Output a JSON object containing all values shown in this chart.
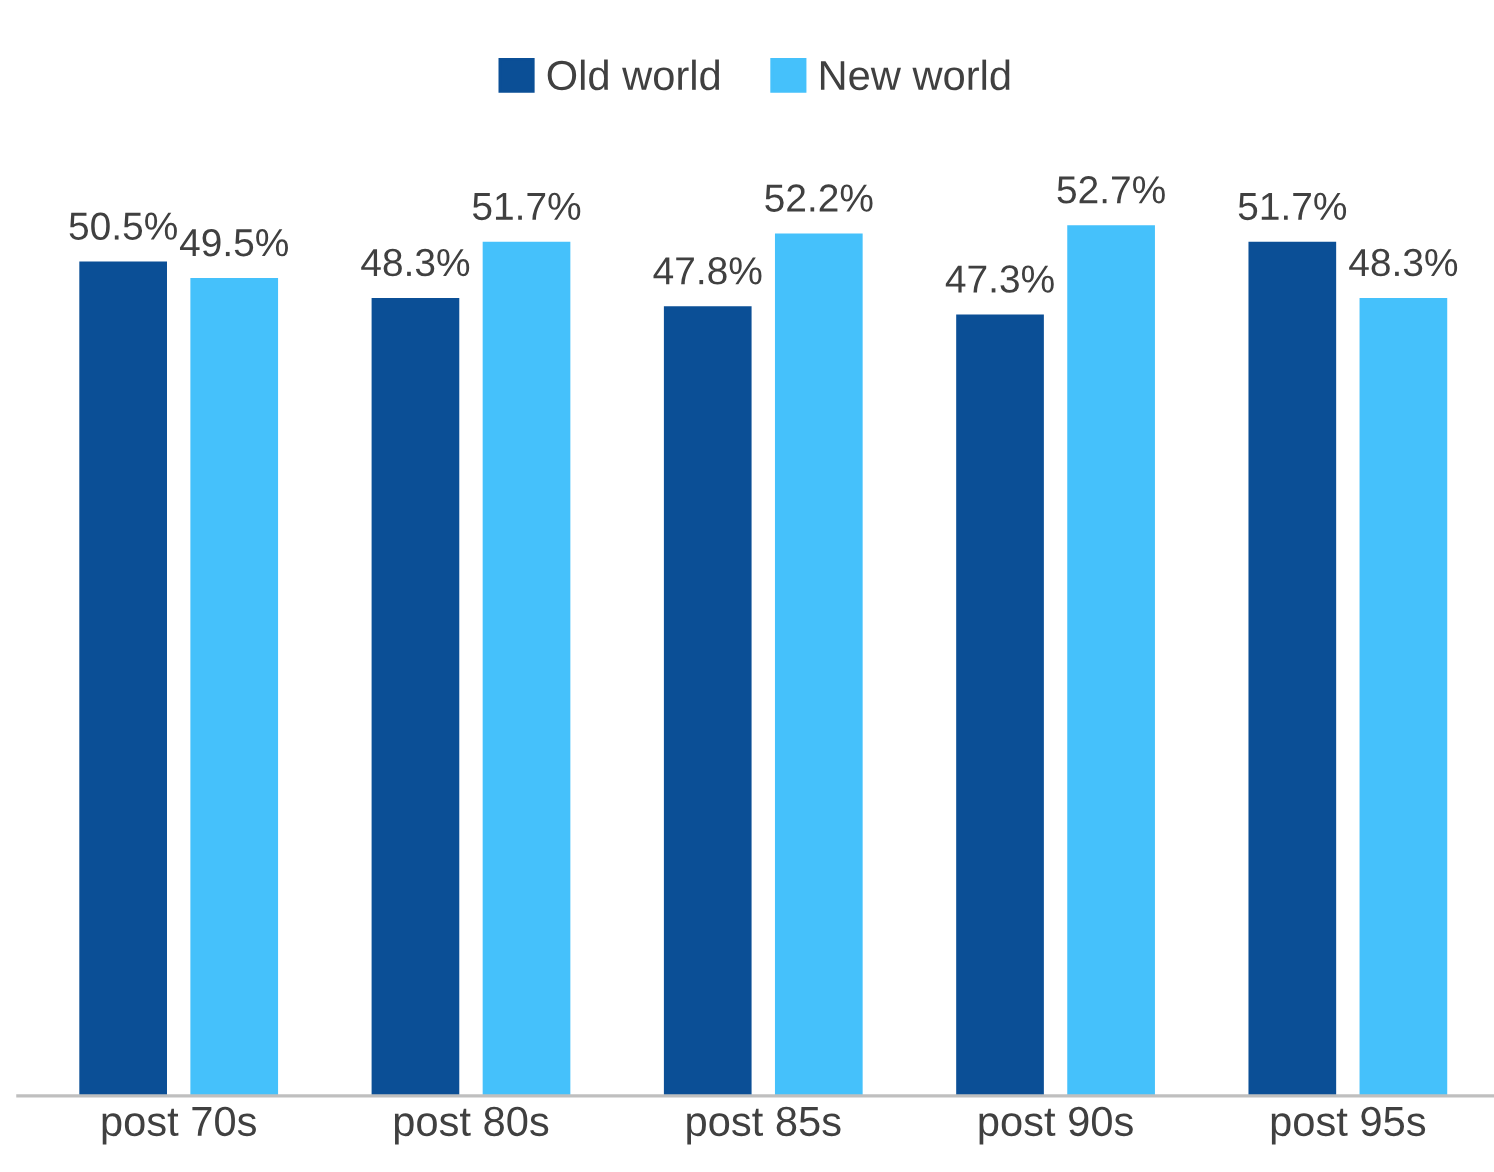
{
  "chart_data": {
    "type": "bar",
    "categories": [
      "post 70s",
      "post 80s",
      "post 85s",
      "post 90s",
      "post 95s"
    ],
    "series": [
      {
        "name": "Old world",
        "color": "#0b4f96",
        "values": [
          50.5,
          48.3,
          47.8,
          47.3,
          51.7
        ],
        "value_labels": [
          "50.5%",
          "48.3%",
          "47.8%",
          "47.3%",
          "51.7%"
        ]
      },
      {
        "name": "New world",
        "color": "#45c1fb",
        "values": [
          49.5,
          51.7,
          52.2,
          52.7,
          48.3
        ],
        "value_labels": [
          "49.5%",
          "51.7%",
          "52.2%",
          "52.7%",
          "48.3%"
        ]
      }
    ],
    "tick_labels": "x",
    "legend": "top",
    "grid": false
  }
}
